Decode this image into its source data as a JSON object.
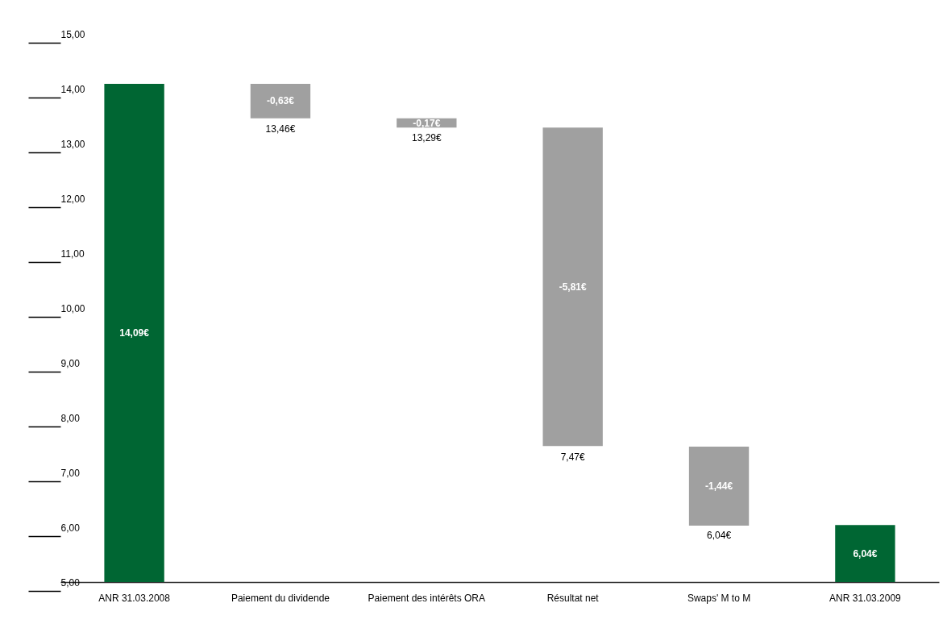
{
  "chart_data": {
    "type": "bar",
    "categories": [
      "ANR 31.03.2008",
      "Paiement du dividende",
      "Paiement des intérêts ORA",
      "Résultat net",
      "Swaps' M to M",
      "ANR 31.03.2009"
    ],
    "base": [
      5,
      14.09,
      13.46,
      13.29,
      7.47,
      5
    ],
    "values": [
      9.09,
      -0.63,
      -0.17,
      -5.81,
      -1.44,
      1.04
    ],
    "value_labels": [
      "14,09€",
      "-0,63€",
      "-0,17€",
      "-5,81€",
      "-1,44€",
      "6,04€"
    ],
    "colors": [
      "#006633",
      "#a0a0a0",
      "#a0a0a0",
      "#a0a0a0",
      "#a0a0a0",
      "#006633"
    ],
    "ylim": [
      5,
      15
    ],
    "yticks": [
      {
        "value": 5,
        "label": "5,00"
      },
      {
        "value": 6,
        "label": "6,00"
      },
      {
        "value": 7,
        "label": "7,00"
      },
      {
        "value": 8,
        "label": "8,00"
      },
      {
        "value": 9,
        "label": "9,00"
      },
      {
        "value": 10,
        "label": "10,00"
      },
      {
        "value": 11,
        "label": "11,00"
      },
      {
        "value": 12,
        "label": "12,00"
      },
      {
        "value": 13,
        "label": "13,00"
      },
      {
        "value": 14,
        "label": "14,00"
      },
      {
        "value": 15,
        "label": "15,00"
      }
    ],
    "annotations": [
      {
        "text": "13,46€",
        "x": "Paiement du dividende",
        "y": 13.46
      },
      {
        "text": "13,29€",
        "x": "Paiement des intérêts ORA",
        "y": 13.29
      },
      {
        "text": "7,47€",
        "x": "Résultat net",
        "y": 7.47
      },
      {
        "text": "6,04€",
        "x": "Swaps' M to M",
        "y": 6.04
      }
    ],
    "grid": false
  }
}
